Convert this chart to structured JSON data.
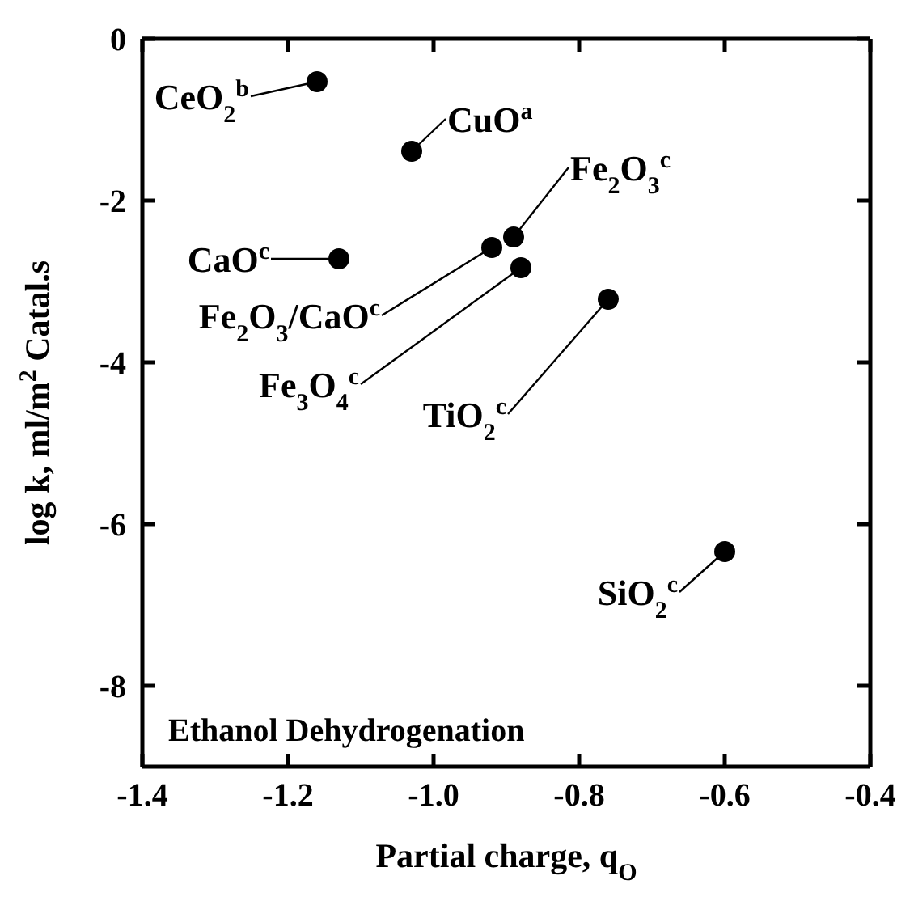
{
  "chart_data": {
    "type": "scatter",
    "xlabel": "Partial charge, q$_{O}$",
    "ylabel": "log k, ml/m$^{2}$ Catal.s",
    "x": [
      -1.16,
      -1.03,
      -0.89,
      -0.92,
      -0.88,
      -1.13,
      -0.76,
      -0.6
    ],
    "values": [
      -0.53,
      -1.39,
      -2.45,
      -2.58,
      -2.83,
      -2.72,
      -3.22,
      -6.34
    ],
    "color": "#000000",
    "marker": "circle",
    "xlim": [
      -1.4,
      -0.4
    ],
    "xticks": [
      {
        "value": -1.4,
        "label": "-1.4"
      },
      {
        "value": -1.2,
        "label": "-1.2"
      },
      {
        "value": -1.0,
        "label": "-1.0"
      },
      {
        "value": -0.8,
        "label": "-0.8"
      },
      {
        "value": -0.6,
        "label": "-0.6"
      },
      {
        "value": -0.4,
        "label": "-0.4"
      }
    ],
    "ylim": [
      -9,
      0
    ],
    "yticks": [
      -8,
      -6,
      -4,
      -2,
      0
    ],
    "annotations": [
      {
        "text": "CeO$_{2}$$^{b}$",
        "x": -1.16,
        "y": -0.53
      },
      {
        "text": "CuO$^{a}$",
        "x": -1.03,
        "y": -1.39
      },
      {
        "text": "Fe$_{2}$O$_{3}$$^{c}$",
        "x": -0.89,
        "y": -2.45
      },
      {
        "text": "Fe$_{2}$O$_{3}$/CaO$^{c}$",
        "x": -0.92,
        "y": -2.58
      },
      {
        "text": "Fe$_{3}$O$_{4}$$^{c}$",
        "x": -0.88,
        "y": -2.83
      },
      {
        "text": "CaO$^{c}$",
        "x": -1.13,
        "y": -2.72
      },
      {
        "text": "TiO$_{2}$$^{c}$",
        "x": -0.76,
        "y": -3.22
      },
      {
        "text": "SiO$_{2}$$^{c}$",
        "x": -0.6,
        "y": -6.34
      },
      "Ethanol Dehydrogenation"
    ]
  }
}
